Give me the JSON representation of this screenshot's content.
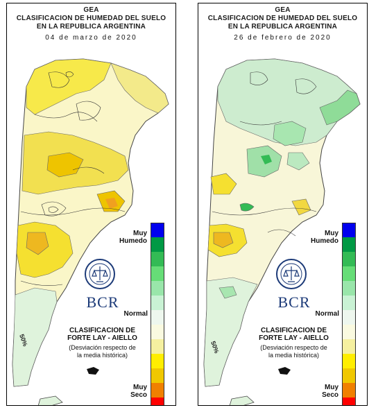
{
  "panels": [
    {
      "title_line1": "GEA",
      "title_line2": "CLASIFICACION DE HUMEDAD DEL SUELO",
      "title_line3": "EN LA REPUBLICA ARGENTINA",
      "date": "04 de marzo de 2020",
      "contour_label": "50%"
    },
    {
      "title_line1": "GEA",
      "title_line2": "CLASIFICACION DE HUMEDAD DEL SUELO",
      "title_line3": "EN LA REPUBLICA ARGENTINA",
      "date": "26 de febrero de 2020",
      "contour_label": "50%"
    }
  ],
  "legend": {
    "top_label_1": "Muy",
    "top_label_2": "Humedo",
    "middle_label": "Normal",
    "bottom_label_1": "Muy",
    "bottom_label_2": "Seco",
    "classification_line1": "CLASIFICACION DE",
    "classification_line2": "FORTE LAY - AIELLO",
    "deviation_line1": "(Desviación respecto de",
    "deviation_line2": "la media histórica)",
    "colors": [
      "#0000ee",
      "#009944",
      "#33bb55",
      "#66dd77",
      "#99e6aa",
      "#c9f2d4",
      "#eef7ee",
      "#fafae0",
      "#f5f0a0",
      "#ffee00",
      "#f0c800",
      "#f08000",
      "#ff0000"
    ]
  },
  "logo": {
    "text": "BCR",
    "icon": "bolsa-comercio-rosario-seal-icon"
  }
}
